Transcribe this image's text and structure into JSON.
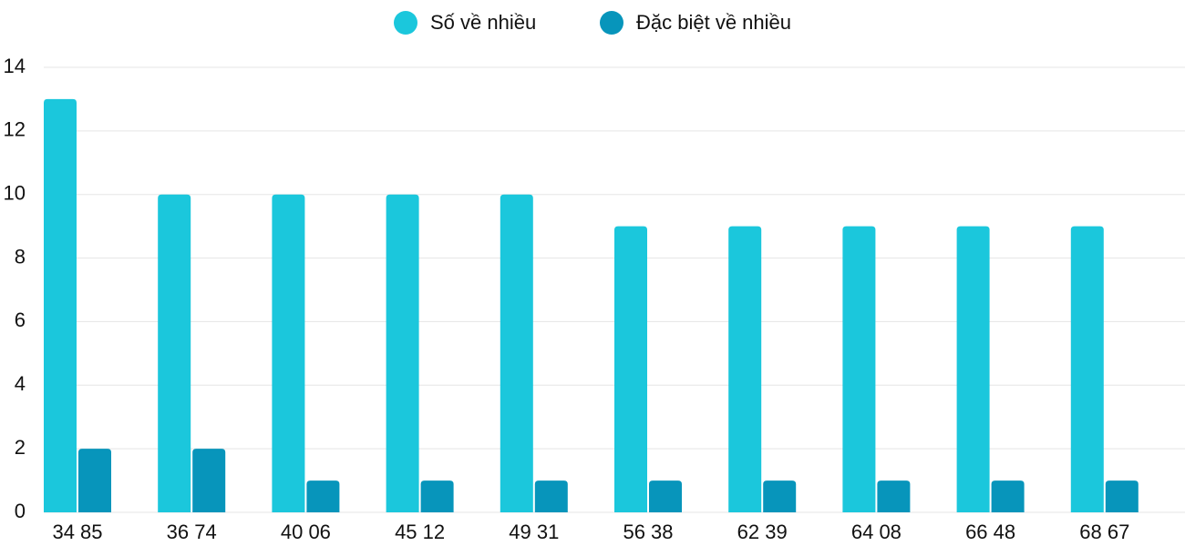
{
  "chart_data": {
    "type": "bar",
    "categories": [
      "34 85",
      "36 74",
      "40 06",
      "45 12",
      "49 31",
      "56 38",
      "62 39",
      "64 08",
      "66 48",
      "68 67"
    ],
    "series": [
      {
        "name": "Số về nhiều",
        "color": "#1bc7dc",
        "values": [
          13,
          10,
          10,
          10,
          10,
          9,
          9,
          9,
          9,
          9
        ]
      },
      {
        "name": "Đặc biệt về nhiều",
        "color": "#0795bb",
        "values": [
          2,
          2,
          1,
          1,
          1,
          1,
          1,
          1,
          1,
          1
        ]
      }
    ],
    "ylim": [
      0,
      14
    ],
    "yticks": [
      0,
      2,
      4,
      6,
      8,
      10,
      12,
      14
    ],
    "grid": true,
    "legend": "top"
  }
}
